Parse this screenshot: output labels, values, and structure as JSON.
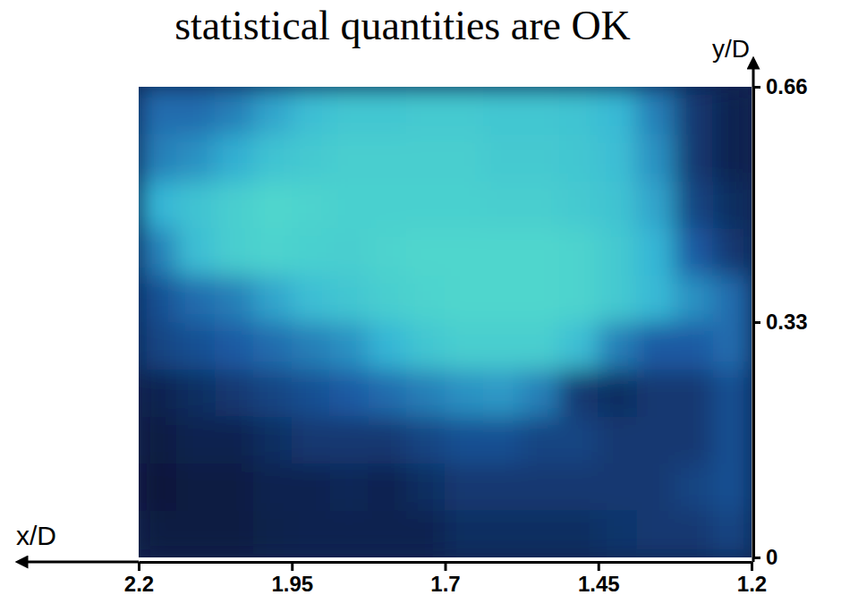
{
  "chart_data": {
    "type": "heatmap",
    "title": "statistical quantities are OK",
    "xlabel": "x/D",
    "ylabel": "y/D",
    "xlim": [
      2.2,
      1.2
    ],
    "ylim": [
      0,
      0.66
    ],
    "xticks": [
      2.2,
      1.95,
      1.7,
      1.45,
      1.2
    ],
    "yticks": [
      0,
      0.33,
      0.66
    ],
    "x_edges": [
      2.2,
      2.1375,
      2.075,
      2.0125,
      1.95,
      1.8875,
      1.825,
      1.7625,
      1.7,
      1.6375,
      1.575,
      1.5125,
      1.45,
      1.3875,
      1.325,
      1.2625,
      1.2
    ],
    "y_edges": [
      0,
      0.066,
      0.132,
      0.198,
      0.264,
      0.33,
      0.396,
      0.462,
      0.528,
      0.594,
      0.66
    ],
    "color_range": [
      0,
      1
    ],
    "cells": [
      [
        0.15,
        0.15,
        0.15,
        0.18,
        0.2,
        0.2,
        0.2,
        0.2,
        0.25,
        0.25,
        0.25,
        0.25,
        0.28,
        0.3,
        0.3,
        0.35
      ],
      [
        0.12,
        0.15,
        0.15,
        0.2,
        0.2,
        0.22,
        0.2,
        0.25,
        0.3,
        0.3,
        0.3,
        0.3,
        0.3,
        0.3,
        0.35,
        0.4
      ],
      [
        0.15,
        0.2,
        0.2,
        0.25,
        0.3,
        0.3,
        0.3,
        0.35,
        0.4,
        0.4,
        0.35,
        0.35,
        0.3,
        0.3,
        0.3,
        0.4
      ],
      [
        0.2,
        0.25,
        0.3,
        0.35,
        0.4,
        0.45,
        0.5,
        0.55,
        0.6,
        0.62,
        0.55,
        0.3,
        0.25,
        0.3,
        0.3,
        0.4
      ],
      [
        0.35,
        0.4,
        0.45,
        0.5,
        0.55,
        0.6,
        0.7,
        0.8,
        0.85,
        0.85,
        0.85,
        0.75,
        0.55,
        0.45,
        0.45,
        0.5
      ],
      [
        0.4,
        0.5,
        0.55,
        0.65,
        0.75,
        0.8,
        0.85,
        0.88,
        0.9,
        0.9,
        0.9,
        0.88,
        0.82,
        0.72,
        0.6,
        0.5
      ],
      [
        0.55,
        0.75,
        0.85,
        0.88,
        0.86,
        0.85,
        0.88,
        0.9,
        0.9,
        0.9,
        0.9,
        0.88,
        0.82,
        0.7,
        0.45,
        0.3
      ],
      [
        0.7,
        0.78,
        0.85,
        0.9,
        0.88,
        0.86,
        0.86,
        0.86,
        0.86,
        0.85,
        0.85,
        0.82,
        0.78,
        0.65,
        0.35,
        0.25
      ],
      [
        0.55,
        0.6,
        0.68,
        0.78,
        0.82,
        0.85,
        0.85,
        0.85,
        0.85,
        0.82,
        0.82,
        0.8,
        0.75,
        0.6,
        0.3,
        0.2
      ],
      [
        0.5,
        0.5,
        0.55,
        0.65,
        0.75,
        0.8,
        0.8,
        0.82,
        0.82,
        0.8,
        0.8,
        0.78,
        0.72,
        0.55,
        0.3,
        0.2
      ]
    ]
  }
}
